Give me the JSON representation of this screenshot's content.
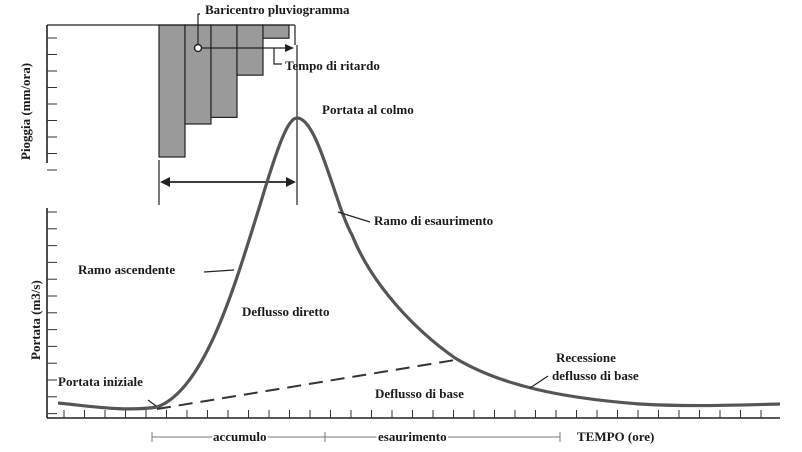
{
  "rain_plot": {
    "ylabel": "Pioggia (mm/ora)",
    "centroid_label": "Baricentro pluviogramma",
    "lag_label": "Tempo di ritardo"
  },
  "hydrograph": {
    "ylabel": "Portata (m3/s)",
    "xlabel": "TEMPO (ore)",
    "peak_label": "Portata al colmo",
    "recession_limb_label": "Ramo di esaurimento",
    "rising_limb_label": "Ramo ascendente",
    "direct_runoff_label": "Deflusso diretto",
    "initial_flow_label": "Portata iniziale",
    "baseflow_label": "Deflusso di base",
    "baseflow_recession_label_line1": "Recessione",
    "baseflow_recession_label_line2": "deflusso di base"
  },
  "phases": {
    "accumulation": "accumulo",
    "depletion": "esaurimento"
  },
  "rainfall_intensity_relative": [
    1.0,
    0.75,
    0.7,
    0.38,
    0.1
  ]
}
